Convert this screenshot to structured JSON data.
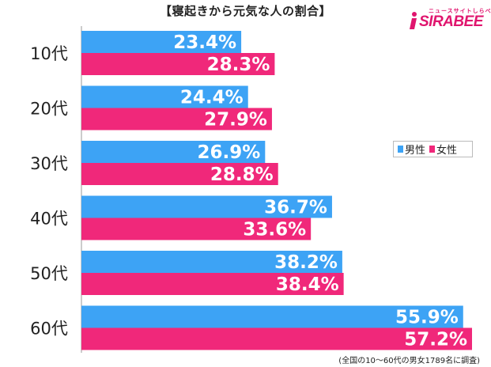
{
  "title": "【寝起きから元気な人の割合】",
  "logo": {
    "word": "SIRABEE",
    "kana": "ニュースサイトしらべぇ",
    "icon": "logo-mark-icon"
  },
  "footnote": "(全国の10〜60代の男女1789名に調査)",
  "colors": {
    "male": "#3da3f5",
    "female": "#f0287a",
    "label_text": "#ffffff",
    "category_text": "#222222"
  },
  "chart_data": {
    "type": "bar",
    "orientation": "horizontal",
    "categories": [
      "10代",
      "20代",
      "30代",
      "40代",
      "50代",
      "60代"
    ],
    "series": [
      {
        "name": "男性",
        "values": [
          23.4,
          24.4,
          26.9,
          36.7,
          38.2,
          55.9
        ],
        "labels": [
          "23.4%",
          "24.4%",
          "26.9%",
          "36.7%",
          "38.2%",
          "55.9%"
        ]
      },
      {
        "name": "女性",
        "values": [
          28.3,
          27.9,
          28.8,
          33.6,
          38.4,
          57.2
        ],
        "labels": [
          "28.3%",
          "27.9%",
          "28.8%",
          "33.6%",
          "38.4%",
          "57.2%"
        ]
      }
    ],
    "xlim": [
      0,
      60
    ],
    "legend": "right",
    "grid": false
  }
}
